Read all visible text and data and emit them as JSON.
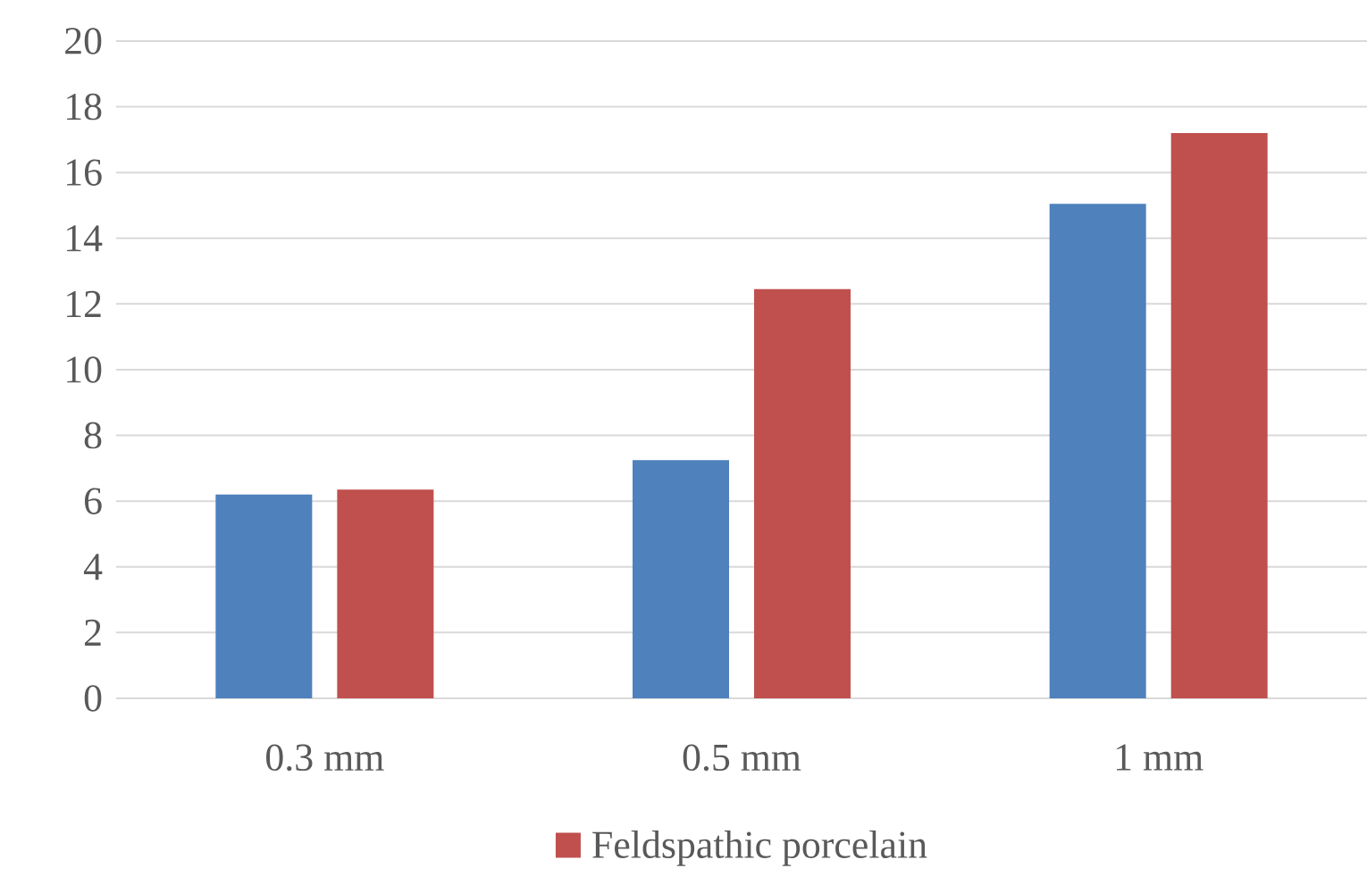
{
  "chart_data": {
    "type": "bar",
    "categories": [
      "0.3 mm",
      "0.5 mm",
      "1 mm"
    ],
    "series": [
      {
        "color": "#4f81bd",
        "values": [
          6.2,
          7.25,
          15.05
        ]
      },
      {
        "name": "Feldspathic porcelain",
        "color": "#c0504d",
        "values": [
          6.35,
          12.45,
          17.2
        ]
      }
    ],
    "ylim": [
      0,
      20
    ],
    "yticks": [
      0,
      2,
      4,
      6,
      8,
      10,
      12,
      14,
      16,
      18,
      20
    ],
    "grid": "y",
    "legend": "bottom"
  }
}
